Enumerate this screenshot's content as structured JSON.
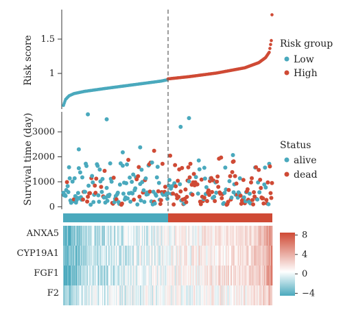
{
  "colors": {
    "low": "#4aa9bd",
    "high": "#cf4a35",
    "mid": "#ffffff"
  },
  "chart_data": [
    {
      "type": "scatter",
      "panel": "risk-score",
      "ylabel": "Risk score",
      "ylim": [
        0.55,
        1.9
      ],
      "yticks": [
        1.0,
        1.5
      ],
      "n_samples": 300,
      "cutoff_index": 150,
      "legend": {
        "title": "Risk group",
        "entries": [
          "Low",
          "High"
        ],
        "placement": "right"
      },
      "series": [
        {
          "name": "Low",
          "curve_x": [
            0,
            3,
            8,
            15,
            30,
            60,
            100,
            140,
            150
          ],
          "curve_y": [
            0.6,
            0.68,
            0.73,
            0.76,
            0.79,
            0.83,
            0.88,
            0.93,
            0.95
          ]
        },
        {
          "name": "High",
          "curve_x": [
            150,
            180,
            220,
            260,
            280,
            290,
            295,
            298,
            299
          ],
          "curve_y": [
            0.96,
            0.99,
            1.04,
            1.11,
            1.18,
            1.25,
            1.32,
            1.48,
            1.83
          ]
        }
      ]
    },
    {
      "type": "scatter",
      "panel": "survival",
      "ylabel": "Survival time (day)",
      "ylim": [
        -100,
        3800
      ],
      "yticks": [
        0,
        1000,
        2000,
        3000
      ],
      "legend": {
        "title": "Status",
        "entries": [
          "alive",
          "dead"
        ],
        "placement": "right"
      },
      "highlight_points": [
        {
          "x": 35,
          "y": 3700,
          "status": "alive"
        },
        {
          "x": 62,
          "y": 3500,
          "status": "alive"
        },
        {
          "x": 168,
          "y": 3200,
          "status": "alive"
        },
        {
          "x": 180,
          "y": 3550,
          "status": "alive"
        },
        {
          "x": 22,
          "y": 2300,
          "status": "alive"
        },
        {
          "x": 85,
          "y": 2180,
          "status": "alive"
        },
        {
          "x": 110,
          "y": 2380,
          "status": "alive"
        },
        {
          "x": 130,
          "y": 2240,
          "status": "dead"
        },
        {
          "x": 142,
          "y": 1720,
          "status": "dead"
        },
        {
          "x": 243,
          "y": 1800,
          "status": "dead"
        },
        {
          "x": 244,
          "y": 1820,
          "status": "dead"
        },
        {
          "x": 202,
          "y": 1560,
          "status": "alive"
        }
      ]
    },
    {
      "type": "heatmap",
      "panel": "expression",
      "rows": [
        "ANXA5",
        "CYP19A1",
        "FGF1",
        "F2"
      ],
      "colorbar_ticks": [
        8,
        4,
        0,
        -4
      ],
      "colorbar_range": [
        -4.5,
        8.5
      ]
    }
  ]
}
